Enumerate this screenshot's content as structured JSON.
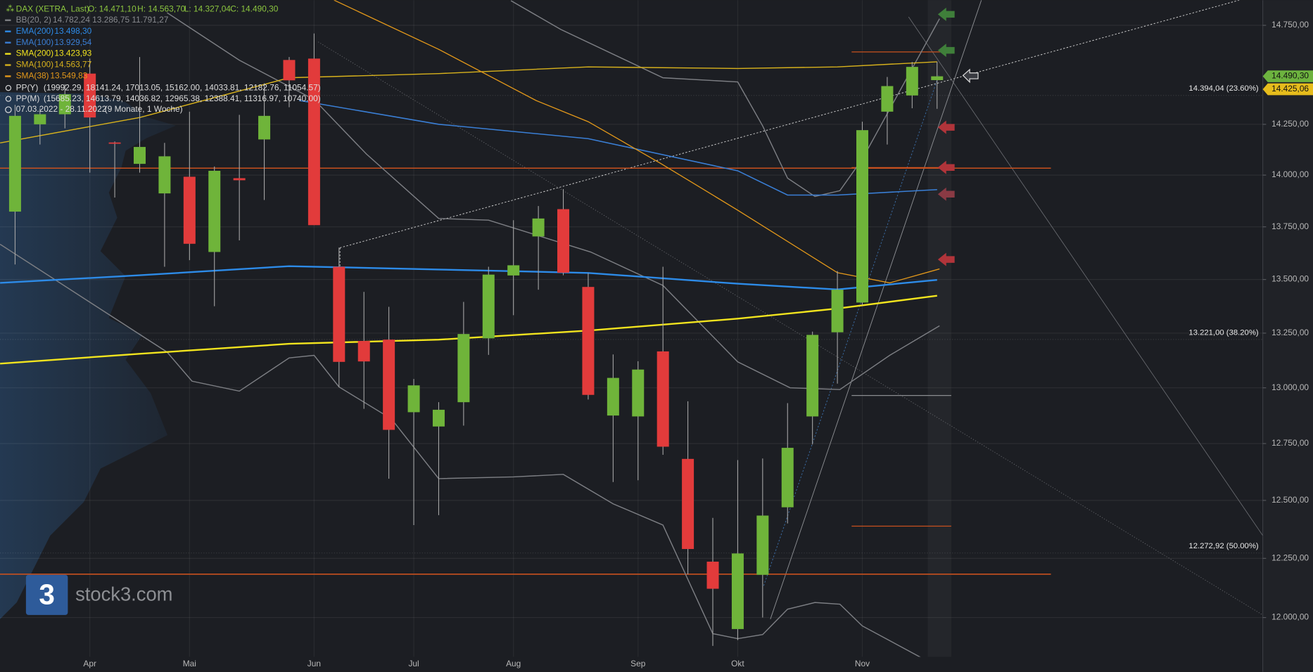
{
  "chart_data": {
    "type": "candlestick",
    "log": true,
    "grid": true,
    "title": "DAX (XETRA, Last)",
    "ohlc_labels": [
      "O: 14.471,10",
      "H: 14.563,70",
      "L: 14.327,04",
      "C: 14.490,30"
    ],
    "up_color": "#6fb43a",
    "down_color": "#e23b3b",
    "x": [
      0,
      1,
      2,
      3,
      4,
      5,
      6,
      7,
      8,
      9,
      10,
      11,
      12,
      13,
      14,
      15,
      16,
      17,
      18,
      19,
      20,
      21,
      22,
      23,
      24,
      25,
      26,
      27,
      28,
      29,
      30,
      31,
      32,
      33,
      34,
      35,
      36,
      37
    ],
    "open": [
      13823,
      14250,
      14300,
      14504,
      14160,
      14055,
      13911,
      13992,
      13630,
      13985,
      14175,
      14573,
      14580,
      13560,
      13214,
      13220,
      12890,
      12826,
      12935,
      13226,
      13519,
      13704,
      13835,
      13465,
      12875,
      12871,
      13166,
      12682,
      12236,
      11952,
      12180,
      12470,
      12871,
      13254,
      13392,
      14313,
      14394,
      14471.1
    ],
    "high": [
      14347,
      14330,
      14450,
      14580,
      14165,
      14588,
      14158,
      14313,
      14042,
      14297,
      14455,
      14588,
      14708,
      13651,
      13442,
      13372,
      13040,
      12935,
      13395,
      13560,
      13782,
      13850,
      13932,
      13530,
      13152,
      13121,
      13560,
      12939,
      12424,
      12677,
      12684,
      12931,
      13257,
      13540,
      14263,
      14487,
      14563,
      14563.7
    ],
    "low": [
      13571,
      14150,
      14230,
      14012,
      13891,
      14012,
      13560,
      13591,
      13375,
      13685,
      13879,
      14335,
      13758,
      13004,
      12905,
      12595,
      12393,
      12436,
      12830,
      13150,
      13333,
      13452,
      13520,
      12947,
      12580,
      12588,
      12700,
      12182,
      11882,
      11906,
      12000,
      12400,
      12746,
      13019,
      13380,
      14150,
      14330,
      14327.04
    ],
    "close": [
      14292,
      14300,
      14400,
      14284,
      14155,
      14138,
      14092,
      13669,
      14021,
      13975,
      14292,
      14470,
      13758,
      13118,
      13120,
      12811,
      13011,
      12901,
      13246,
      13523,
      13567,
      13790,
      13532,
      12968,
      13045,
      13083,
      12736,
      12290,
      12121,
      12271,
      12434,
      12731,
      13242,
      13452,
      14221,
      14441,
      14538,
      14490.3
    ],
    "lines": [
      {
        "name": "BB(20, 2)",
        "last_label": "14.782,24  13.286,75  11.791,27",
        "color": "#7d7f84",
        "width": 1.2,
        "x": [
          19.9,
          21.9,
          26.0,
          29.0,
          30.0,
          31.0,
          32.1,
          33.1,
          34.0,
          37.1
        ],
        "values": [
          14877,
          14729,
          14483,
          14462,
          14242,
          13985,
          13896,
          13924,
          14079,
          14784
        ]
      },
      {
        "name": null,
        "color": "#7d7f84",
        "width": 1.2,
        "x": [
          6.1,
          9.0,
          12.0,
          14.1,
          17.0,
          19.0,
          23.1,
          26.0,
          29.0,
          31.1,
          33.1,
          35.1,
          37.1
        ],
        "values": [
          14815,
          14572,
          14373,
          14103,
          13790,
          13782,
          13630,
          13472,
          13118,
          13000,
          12992,
          13148,
          13284
        ]
      },
      {
        "name": null,
        "color": "#7d7f84",
        "width": 1.2,
        "x": [
          -0.6,
          6.1,
          7.1,
          9.0,
          11.0,
          12.0,
          13.0,
          15.1,
          17.0,
          20.0,
          22.0,
          24.0,
          26.0,
          28.0,
          29.0,
          30.0,
          31.0,
          32.1,
          33.1,
          34.0,
          37.1
        ],
        "values": [
          13667,
          13163,
          13030,
          12985,
          13136,
          13148,
          13004,
          12860,
          12595,
          12603,
          12614,
          12485,
          12393,
          11933,
          11912,
          11929,
          12035,
          12063,
          12056,
          11965,
          11793
        ]
      },
      {
        "name": "EMA(200)",
        "last_label": "13.498,30",
        "color": "#2d8be8",
        "width": 2,
        "x": [
          -0.6,
          5,
          11,
          17,
          23,
          29,
          33,
          37
        ],
        "values": [
          13484,
          13520,
          13563,
          13547,
          13531,
          13480,
          13453,
          13498.3
        ]
      },
      {
        "name": "EMA(100)",
        "last_label": "13.929,54",
        "color": "#3a7fd6",
        "width": 1.3,
        "x": [
          11.4,
          17,
          23,
          29,
          31,
          33,
          37
        ],
        "values": [
          14369,
          14250,
          14179,
          14021,
          13903,
          13903,
          13929.54
        ]
      },
      {
        "name": "SMA(200)",
        "last_label": "13.423,93",
        "color": "#f2e41e",
        "width": 2,
        "x": [
          -0.6,
          5,
          11,
          17,
          23,
          29,
          33,
          37
        ],
        "values": [
          13110,
          13155,
          13201,
          13220,
          13262,
          13317,
          13364,
          13423.93
        ]
      },
      {
        "name": "SMA(100)",
        "last_label": "14.563,77",
        "color": "#d8b21c",
        "width": 1.2,
        "x": [
          -0.6,
          5,
          11,
          17,
          23,
          29,
          33,
          37
        ],
        "values": [
          14158,
          14284,
          14483,
          14504,
          14538,
          14530,
          14538,
          14563.77
        ]
      },
      {
        "name": "SMA(38)",
        "last_label": "13.549,83",
        "color": "#e3981a",
        "width": 1.1,
        "x": [
          12.8,
          17,
          20.9,
          23,
          25.9,
          29,
          33,
          35.1,
          37.1
        ],
        "values": [
          14880,
          14627,
          14369,
          14263,
          14058,
          13830,
          13532,
          13484,
          13549.83
        ]
      }
    ],
    "pivots": [
      {
        "name": "PP(Y)",
        "levels_label": "(19992.29, 18141.24, 17013.05, 15162.00, 14033.81, 12182.76, 11054.57)",
        "levels": [
          19992.29,
          18141.24,
          17013.05,
          15162.0,
          14033.81,
          12182.76,
          11054.57
        ],
        "span": "year"
      },
      {
        "name": "PP(M)",
        "levels_label": "(15685.23, 14613.79, 14036.82, 12965.38, 12388.41, 11316.97, 10740.00)",
        "levels": [
          15685.23,
          14613.79,
          14036.82,
          12965.38,
          12388.41,
          11316.97,
          10740.0
        ],
        "span": "month"
      }
    ],
    "period": "07.03.2022 - 28.11.2022",
    "period_note": "(9 Monate, 1 Woche)",
    "fib": [
      {
        "value": 14394.04,
        "label": "14.394,04 (23.60%)"
      },
      {
        "value": 13221.0,
        "label": "13.221,00 (38.20%)"
      },
      {
        "value": 12272.92,
        "label": "12.272,92 (50.00%)"
      }
    ],
    "price_tags": [
      {
        "value": 14490.3,
        "label": "14.490,30",
        "color": "#6db33f"
      },
      {
        "value": 14425.06,
        "label": "14.425,06",
        "color": "#e6bc1c"
      }
    ],
    "xlim": [
      -0.605,
      50.07
    ],
    "ylim": [
      11837,
      14880
    ],
    "yticks": [
      {
        "value": 12000,
        "label": "12.000,00"
      },
      {
        "value": 12250,
        "label": "12.250,00"
      },
      {
        "value": 12500,
        "label": "12.500,00"
      },
      {
        "value": 12750,
        "label": "12.750,00"
      },
      {
        "value": 13000,
        "label": "13.000,00"
      },
      {
        "value": 13250,
        "label": "13.250,00"
      },
      {
        "value": 13500,
        "label": "13.500,00"
      },
      {
        "value": 13750,
        "label": "13.750,00"
      },
      {
        "value": 14000,
        "label": "14.000,00"
      },
      {
        "value": 14250,
        "label": "14.250,00"
      },
      {
        "value": 14750,
        "label": "14.750,00"
      }
    ],
    "xticks": [
      {
        "value": 3.0,
        "label": "Apr"
      },
      {
        "value": 7.0,
        "label": "Mai"
      },
      {
        "value": 12.0,
        "label": "Jun"
      },
      {
        "value": 16.0,
        "label": "Jul"
      },
      {
        "value": 20.0,
        "label": "Aug"
      },
      {
        "value": 25.0,
        "label": "Sep"
      },
      {
        "value": 29.0,
        "label": "Okt"
      },
      {
        "value": 34.0,
        "label": "Nov"
      }
    ]
  },
  "watermark": {
    "logo": "3",
    "text": "stock3.com"
  }
}
